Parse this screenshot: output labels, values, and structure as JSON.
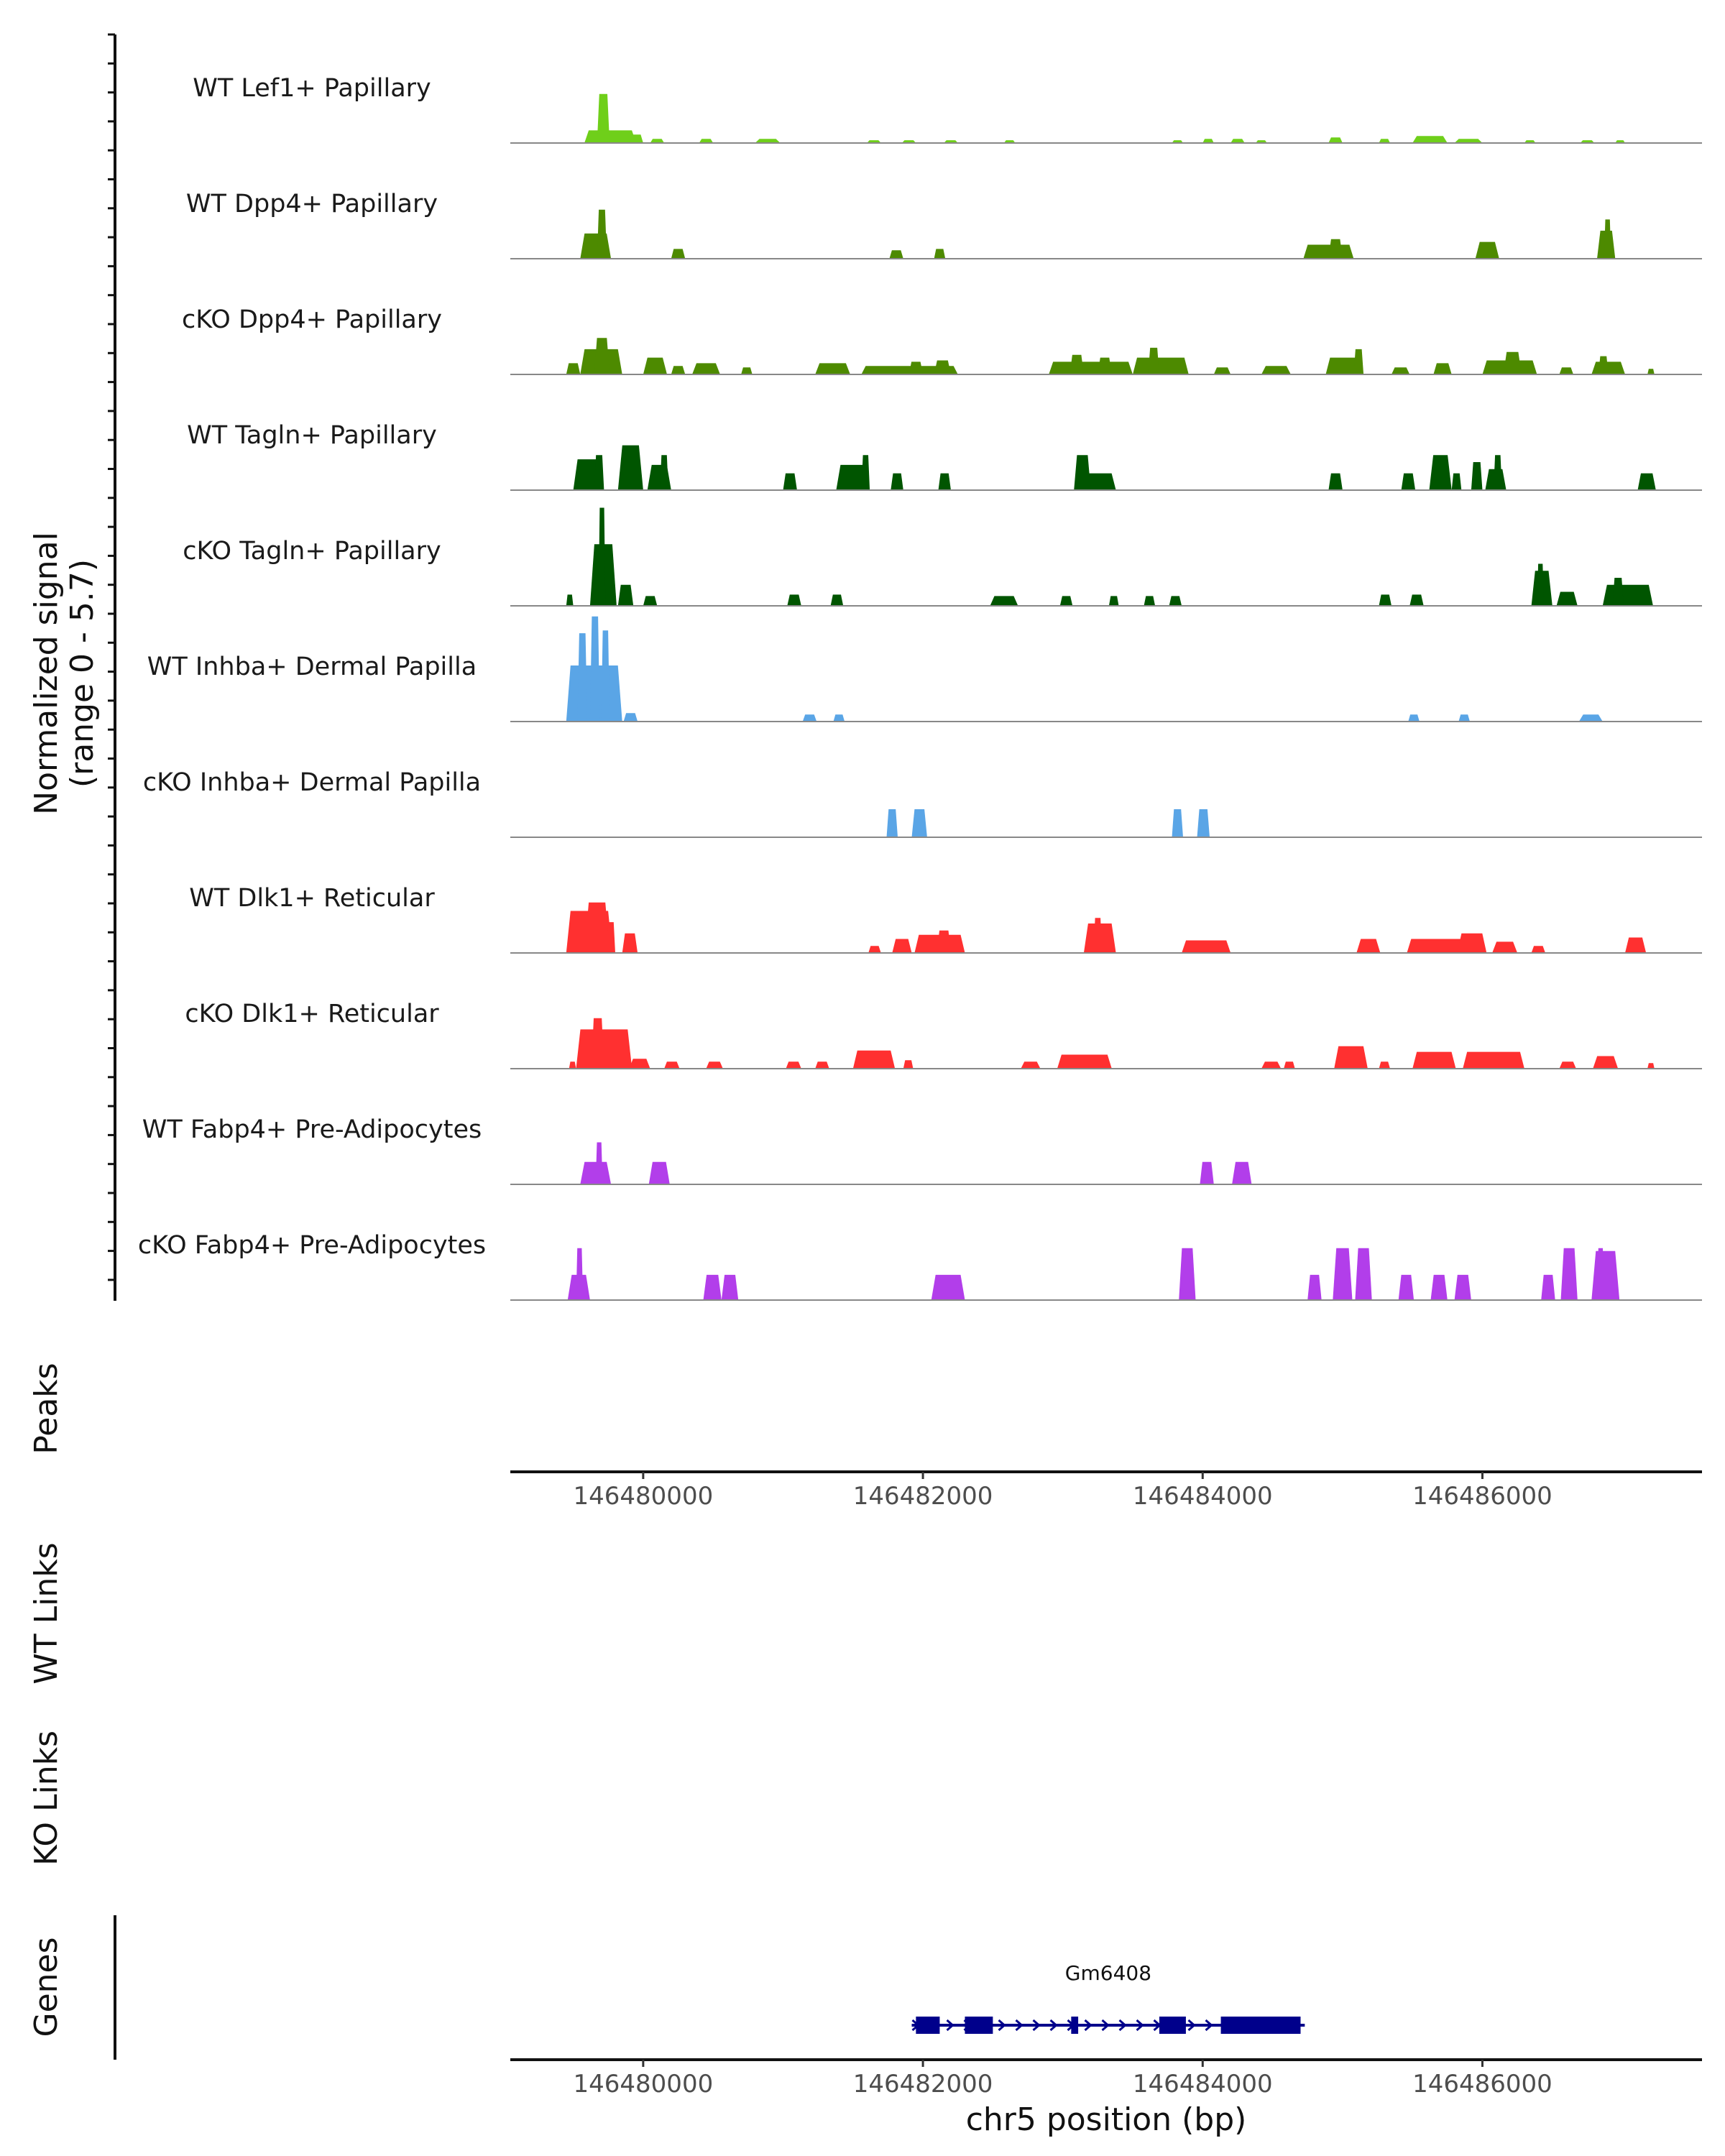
{
  "chart_data": {
    "type": "coverage",
    "chromosome": "chr5",
    "x_range": [
      146479050,
      146487570
    ],
    "y_axis_title": [
      "Normalized signal",
      "(range 0 - 5.7)"
    ],
    "y_range": [
      0,
      5.7
    ],
    "tracks": [
      {
        "name": "WT Lef1+ Papillary",
        "color": "#6fcf1a",
        "peaks": [
          [
            146479580,
            146479950,
            0.9
          ],
          [
            146479670,
            146479760,
            3.5
          ],
          [
            146479900,
            146480000,
            0.6
          ],
          [
            146480050,
            146480150,
            0.3
          ],
          [
            146480400,
            146480500,
            0.3
          ],
          [
            146480800,
            146480980,
            0.3
          ],
          [
            146481600,
            146481700,
            0.2
          ],
          [
            146481850,
            146481950,
            0.2
          ],
          [
            146482150,
            146482250,
            0.2
          ],
          [
            146482580,
            146482660,
            0.2
          ],
          [
            146483780,
            146483860,
            0.2
          ],
          [
            146484000,
            146484080,
            0.3
          ],
          [
            146484200,
            146484300,
            0.3
          ],
          [
            146484380,
            146484460,
            0.2
          ],
          [
            146484900,
            146485000,
            0.4
          ],
          [
            146485260,
            146485340,
            0.3
          ],
          [
            146485500,
            146485750,
            0.5
          ],
          [
            146485800,
            146486000,
            0.3
          ],
          [
            146486300,
            146486380,
            0.2
          ],
          [
            146486700,
            146486800,
            0.2
          ],
          [
            146486950,
            146487020,
            0.2
          ]
        ]
      },
      {
        "name": "WT Dpp4+ Papillary",
        "color": "#4d8a00",
        "peaks": [
          [
            146479550,
            146479770,
            1.8
          ],
          [
            146479670,
            146479740,
            3.5
          ],
          [
            146480200,
            146480300,
            0.7
          ],
          [
            146481760,
            146481860,
            0.6
          ],
          [
            146482080,
            146482160,
            0.7
          ],
          [
            146484720,
            146485080,
            1.0
          ],
          [
            146484900,
            146485000,
            1.4
          ],
          [
            146485950,
            146486120,
            1.2
          ],
          [
            146486820,
            146486950,
            2.0
          ],
          [
            146486870,
            146486920,
            2.8
          ]
        ]
      },
      {
        "name": "cKO Dpp4+ Papillary",
        "color": "#4d8a00",
        "peaks": [
          [
            146479450,
            146479550,
            0.8
          ],
          [
            146479550,
            146479850,
            1.8
          ],
          [
            146479650,
            146479760,
            2.6
          ],
          [
            146480000,
            146480170,
            1.2
          ],
          [
            146480200,
            146480300,
            0.6
          ],
          [
            146480350,
            146480550,
            0.8
          ],
          [
            146480700,
            146480780,
            0.5
          ],
          [
            146481230,
            146481480,
            0.8
          ],
          [
            146481560,
            146482250,
            0.6
          ],
          [
            146481900,
            146482000,
            0.9
          ],
          [
            146482080,
            146482200,
            1.0
          ],
          [
            146482900,
            146483500,
            0.9
          ],
          [
            146483050,
            146483150,
            1.4
          ],
          [
            146483250,
            146483350,
            1.2
          ],
          [
            146483500,
            146483900,
            1.2
          ],
          [
            146483610,
            146483690,
            1.9
          ],
          [
            146484080,
            146484200,
            0.5
          ],
          [
            146484420,
            146484630,
            0.6
          ],
          [
            146484880,
            146485150,
            1.2
          ],
          [
            146485080,
            146485150,
            1.8
          ],
          [
            146485350,
            146485480,
            0.5
          ],
          [
            146485650,
            146485780,
            0.8
          ],
          [
            146486000,
            146486390,
            1.0
          ],
          [
            146486150,
            146486280,
            1.6
          ],
          [
            146486550,
            146486650,
            0.5
          ],
          [
            146486780,
            146487020,
            0.9
          ],
          [
            146486830,
            146486900,
            1.3
          ],
          [
            146487180,
            146487230,
            0.4
          ]
        ]
      },
      {
        "name": "WT Tagln+ Papillary",
        "color": "#005500",
        "peaks": [
          [
            146479500,
            146479700,
            2.2
          ],
          [
            146479650,
            146479720,
            2.5
          ],
          [
            146479820,
            146480000,
            3.2
          ],
          [
            146480030,
            146480200,
            1.8
          ],
          [
            146480120,
            146480180,
            2.5
          ],
          [
            146481000,
            146481100,
            1.2
          ],
          [
            146481380,
            146481620,
            1.8
          ],
          [
            146481560,
            146481620,
            2.5
          ],
          [
            146481770,
            146481860,
            1.2
          ],
          [
            146482110,
            146482200,
            1.2
          ],
          [
            146483080,
            146483380,
            1.2
          ],
          [
            146483080,
            146483200,
            2.5
          ],
          [
            146484900,
            146485000,
            1.2
          ],
          [
            146485420,
            146485520,
            1.2
          ],
          [
            146485620,
            146485780,
            2.5
          ],
          [
            146485780,
            146485850,
            1.2
          ],
          [
            146485920,
            146486000,
            2.0
          ],
          [
            146486020,
            146486170,
            1.5
          ],
          [
            146486080,
            146486140,
            2.5
          ],
          [
            146487110,
            146487240,
            1.2
          ]
        ]
      },
      {
        "name": "cKO Tagln+ Papillary",
        "color": "#005500",
        "peaks": [
          [
            146479450,
            146479500,
            0.8
          ],
          [
            146479620,
            146479810,
            4.4
          ],
          [
            146479680,
            146479730,
            7.0
          ],
          [
            146479820,
            146479930,
            1.5
          ],
          [
            146480000,
            146480100,
            0.7
          ],
          [
            146481030,
            146481130,
            0.8
          ],
          [
            146481340,
            146481430,
            0.8
          ],
          [
            146482480,
            146482680,
            0.7
          ],
          [
            146482980,
            146483070,
            0.7
          ],
          [
            146483330,
            146483400,
            0.7
          ],
          [
            146483580,
            146483660,
            0.7
          ],
          [
            146483760,
            146483850,
            0.7
          ],
          [
            146485260,
            146485350,
            0.8
          ],
          [
            146485480,
            146485580,
            0.8
          ],
          [
            146486350,
            146486500,
            2.5
          ],
          [
            146486390,
            146486440,
            3.0
          ],
          [
            146486530,
            146486680,
            1.0
          ],
          [
            146486860,
            146487220,
            1.5
          ],
          [
            146486930,
            146487010,
            2.0
          ]
        ]
      },
      {
        "name": "WT Inhba+ Dermal Papilla",
        "color": "#5aa5e6",
        "peaks": [
          [
            146479450,
            146479850,
            4.0
          ],
          [
            146479530,
            146479600,
            6.3
          ],
          [
            146479620,
            146479690,
            7.5
          ],
          [
            146479700,
            146479760,
            6.5
          ],
          [
            146479860,
            146479960,
            0.6
          ],
          [
            146481140,
            146481240,
            0.5
          ],
          [
            146481360,
            146481440,
            0.5
          ],
          [
            146485470,
            146485550,
            0.5
          ],
          [
            146485830,
            146485910,
            0.5
          ],
          [
            146486690,
            146486860,
            0.5
          ]
        ]
      },
      {
        "name": "cKO Inhba+ Dermal Papilla",
        "color": "#5aa5e6",
        "peaks": [
          [
            146481740,
            146481820,
            2.0
          ],
          [
            146481920,
            146482030,
            2.0
          ],
          [
            146483780,
            146483860,
            2.0
          ],
          [
            146483960,
            146484050,
            2.0
          ]
        ]
      },
      {
        "name": "WT Dlk1+ Reticular",
        "color": "#ff3030",
        "peaks": [
          [
            146479450,
            146479780,
            3.0
          ],
          [
            146479580,
            146479760,
            3.6
          ],
          [
            146479740,
            146479800,
            2.2
          ],
          [
            146479850,
            146479960,
            1.4
          ],
          [
            146481610,
            146481700,
            0.5
          ],
          [
            146481780,
            146481920,
            1.0
          ],
          [
            146481940,
            146482300,
            1.3
          ],
          [
            146482100,
            146482200,
            1.6
          ],
          [
            146483150,
            146483380,
            2.1
          ],
          [
            146483220,
            146483280,
            2.5
          ],
          [
            146483850,
            146484200,
            0.9
          ],
          [
            146484060,
            146484130,
            0.6
          ],
          [
            146485100,
            146485270,
            1.0
          ],
          [
            146485460,
            146485900,
            1.0
          ],
          [
            146485820,
            146486030,
            1.4
          ],
          [
            146486070,
            146486250,
            0.8
          ],
          [
            146486350,
            146486450,
            0.5
          ],
          [
            146487020,
            146487170,
            1.1
          ]
        ]
      },
      {
        "name": "cKO Dlk1+ Reticular",
        "color": "#ff3030",
        "peaks": [
          [
            146479470,
            146479520,
            0.5
          ],
          [
            146479520,
            146479920,
            2.8
          ],
          [
            146479630,
            146479720,
            3.6
          ],
          [
            146479900,
            146480050,
            0.7
          ],
          [
            146480150,
            146480260,
            0.5
          ],
          [
            146480450,
            146480570,
            0.5
          ],
          [
            146481020,
            146481130,
            0.5
          ],
          [
            146481230,
            146481330,
            0.5
          ],
          [
            146481500,
            146481800,
            1.3
          ],
          [
            146481860,
            146481930,
            0.6
          ],
          [
            146482700,
            146482840,
            0.5
          ],
          [
            146482960,
            146483350,
            1.0
          ],
          [
            146484420,
            146484560,
            0.5
          ],
          [
            146484580,
            146484660,
            0.5
          ],
          [
            146484940,
            146485180,
            1.6
          ],
          [
            146485260,
            146485340,
            0.5
          ],
          [
            146485500,
            146485810,
            1.2
          ],
          [
            146485860,
            146486300,
            1.2
          ],
          [
            146486550,
            146486670,
            0.5
          ],
          [
            146486790,
            146486970,
            0.9
          ],
          [
            146487180,
            146487230,
            0.4
          ]
        ]
      },
      {
        "name": "WT Fabp4+ Pre-Adipocytes",
        "color": "#b23eea",
        "peaks": [
          [
            146479550,
            146479770,
            1.6
          ],
          [
            146479660,
            146479710,
            3.0
          ],
          [
            146480040,
            146480190,
            1.6
          ],
          [
            146483980,
            146484080,
            1.6
          ],
          [
            146484210,
            146484350,
            1.6
          ]
        ]
      },
      {
        "name": "cKO Fabp4+ Pre-Adipocytes",
        "color": "#b23eea",
        "peaks": [
          [
            146479460,
            146479620,
            1.8
          ],
          [
            146479520,
            146479570,
            3.7
          ],
          [
            146480430,
            146480560,
            1.8
          ],
          [
            146480560,
            146480680,
            1.8
          ],
          [
            146482060,
            146482300,
            1.8
          ],
          [
            146483830,
            146483950,
            3.7
          ],
          [
            146484750,
            146484850,
            1.8
          ],
          [
            146484930,
            146485070,
            3.7
          ],
          [
            146485090,
            146485210,
            3.7
          ],
          [
            146485400,
            146485510,
            1.8
          ],
          [
            146485630,
            146485750,
            1.8
          ],
          [
            146485800,
            146485920,
            1.8
          ],
          [
            146486420,
            146486520,
            1.8
          ],
          [
            146486560,
            146486680,
            3.7
          ],
          [
            146486780,
            146486980,
            3.5
          ],
          [
            146486820,
            146486870,
            3.7
          ]
        ]
      }
    ],
    "x_ticks": [
      146480000,
      146482000,
      146484000,
      146486000
    ],
    "x_tick_labels": [
      "146480000",
      "146482000",
      "146484000",
      "146486000"
    ],
    "x_axis_title": "chr5 position (bp)",
    "panels": [
      "Peaks",
      "WT Links",
      "KO Links",
      "Genes"
    ],
    "gene": {
      "name": "Gm6408",
      "strand": "+",
      "start": 146481920,
      "end": 146484730,
      "exons": [
        [
          146481950,
          146482120
        ],
        [
          146482300,
          146482500
        ],
        [
          146483060,
          146483110
        ],
        [
          146483690,
          146483880
        ],
        [
          146484130,
          146484700
        ]
      ],
      "color": "#00008b"
    }
  }
}
